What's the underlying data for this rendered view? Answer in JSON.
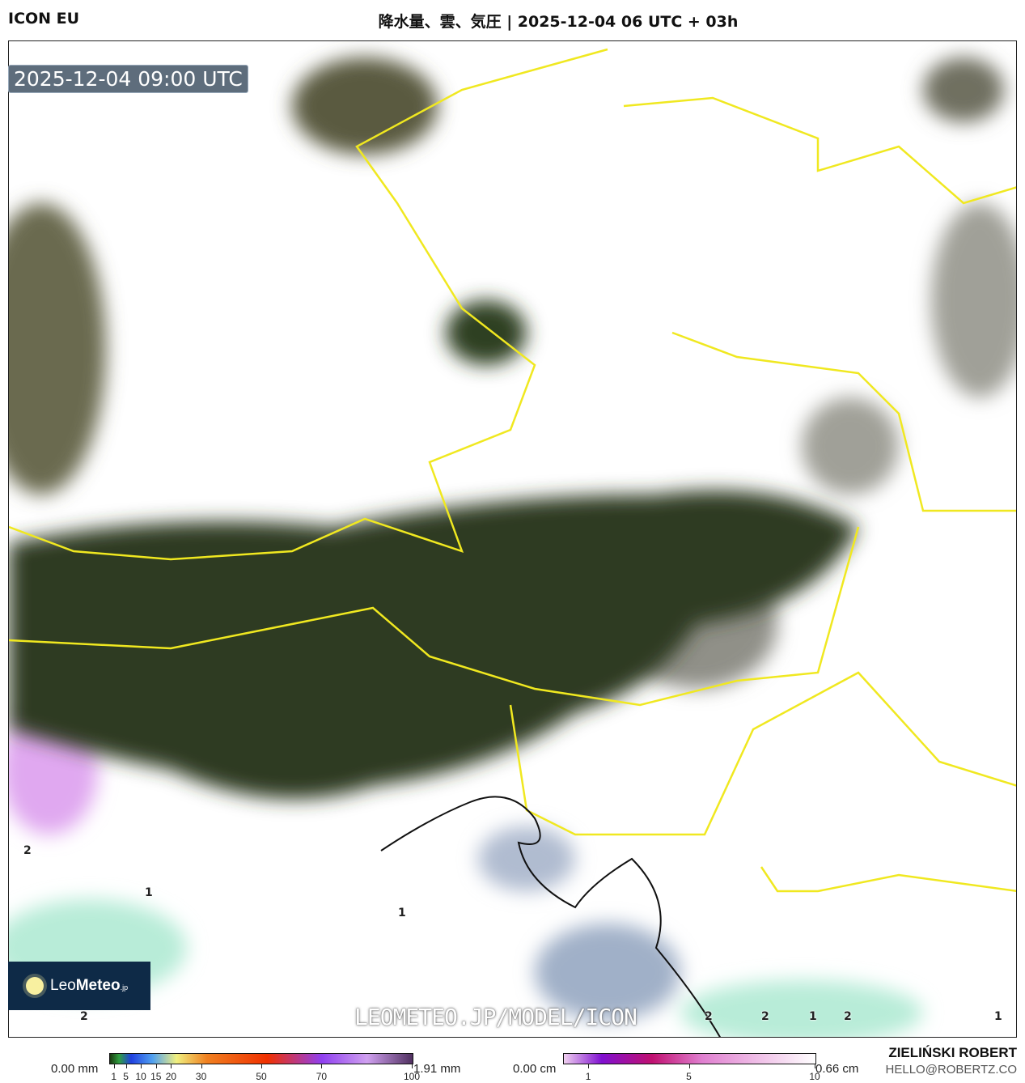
{
  "header": {
    "model": "ICON EU",
    "title": "降水量、雲、気圧 | 2025-12-04 06 UTC + 03h"
  },
  "map": {
    "valid_time": "2025-12-04 09:00 UTC",
    "watermark": "LEOMETEO.JP/MODEL/ICON",
    "pressure_labels": [
      "2",
      "1",
      "1",
      "2",
      "2",
      "2",
      "1",
      "2",
      "1"
    ],
    "colors": {
      "border": "#f0e820",
      "snow": "#e8a8f0",
      "rain_light": "#a8e8d0",
      "cloud": "#9a9a90",
      "terrain": "#2d3a1f"
    }
  },
  "logo": {
    "name_light": "Leo",
    "name_bold": "Meteo",
    "suffix": ".jp"
  },
  "legend": {
    "rain": {
      "min": "0.00 mm",
      "max": "1.91 mm",
      "ticks": [
        "1",
        "5",
        "10",
        "15",
        "20",
        "30",
        "50",
        "70",
        "100"
      ]
    },
    "snow": {
      "min": "0.00 cm",
      "max": "0.66 cm",
      "ticks": [
        "1",
        "5",
        "10"
      ]
    }
  },
  "credits": {
    "author": "ZIELIŃSKI ROBERT",
    "email": "HELLO@ROBERTZ.CO"
  }
}
